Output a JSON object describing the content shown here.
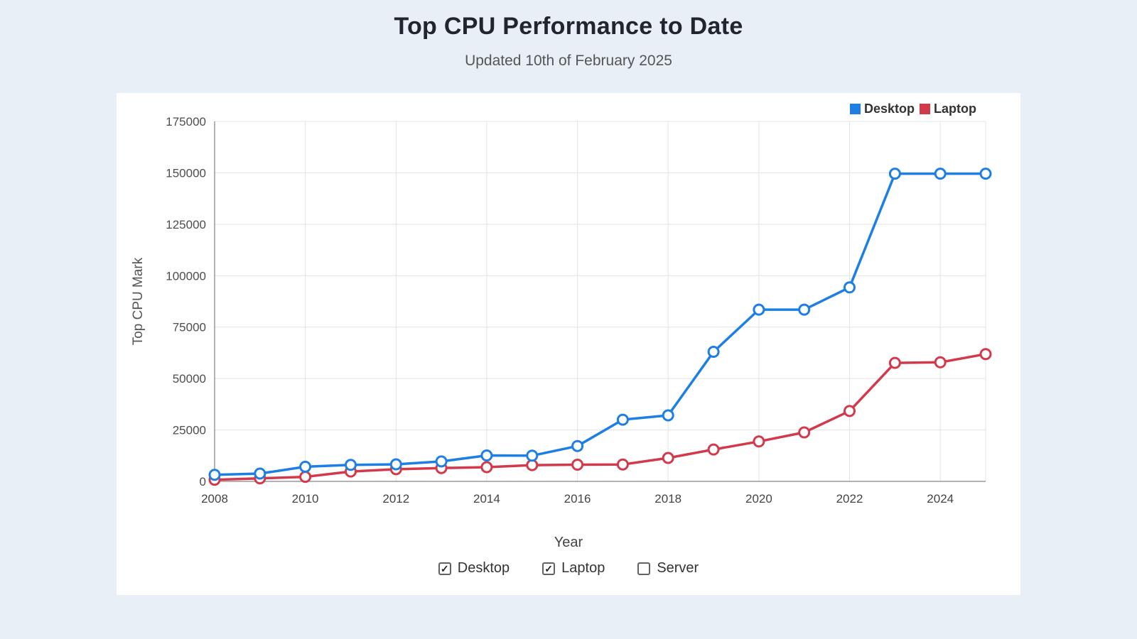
{
  "page": {
    "title": "Top CPU Performance to Date",
    "subtitle": "Updated 10th of February 2025"
  },
  "chart_data": {
    "type": "line",
    "title": "Top CPU Performance to Date",
    "xlabel": "Year",
    "ylabel": "Top CPU Mark",
    "x": [
      2008,
      2009,
      2010,
      2011,
      2012,
      2013,
      2014,
      2015,
      2016,
      2017,
      2018,
      2019,
      2020,
      2021,
      2022,
      2023,
      2024,
      2025
    ],
    "x_ticks": [
      2008,
      2010,
      2012,
      2014,
      2016,
      2018,
      2020,
      2022,
      2024
    ],
    "ylim": [
      0,
      175000
    ],
    "y_ticks": [
      0,
      25000,
      50000,
      75000,
      100000,
      125000,
      150000,
      175000
    ],
    "grid": true,
    "legend_position": "top-right",
    "series": [
      {
        "name": "Desktop",
        "color": "#1d7fe3",
        "values": [
          3200,
          3800,
          7100,
          8000,
          8300,
          9700,
          12600,
          12500,
          17200,
          30000,
          32100,
          63000,
          83500,
          83500,
          94300,
          149600,
          149600,
          149600
        ]
      },
      {
        "name": "Laptop",
        "color": "#d23a4c",
        "values": [
          800,
          1500,
          2200,
          4800,
          5900,
          6500,
          6900,
          7900,
          8100,
          8200,
          11400,
          15500,
          19400,
          23800,
          34200,
          57600,
          57900,
          61900
        ]
      }
    ]
  },
  "controls": {
    "checkboxes": [
      {
        "label": "Desktop",
        "checked": true
      },
      {
        "label": "Laptop",
        "checked": true
      },
      {
        "label": "Server",
        "checked": false
      }
    ]
  },
  "colors": {
    "page_background": "#e9eff7",
    "card_background": "#ffffff",
    "grid_line": "#e3e3e3",
    "axis_line": "#9a9a9a",
    "desktop_blue": "#1d7fe3",
    "laptop_red": "#d23a4c"
  }
}
